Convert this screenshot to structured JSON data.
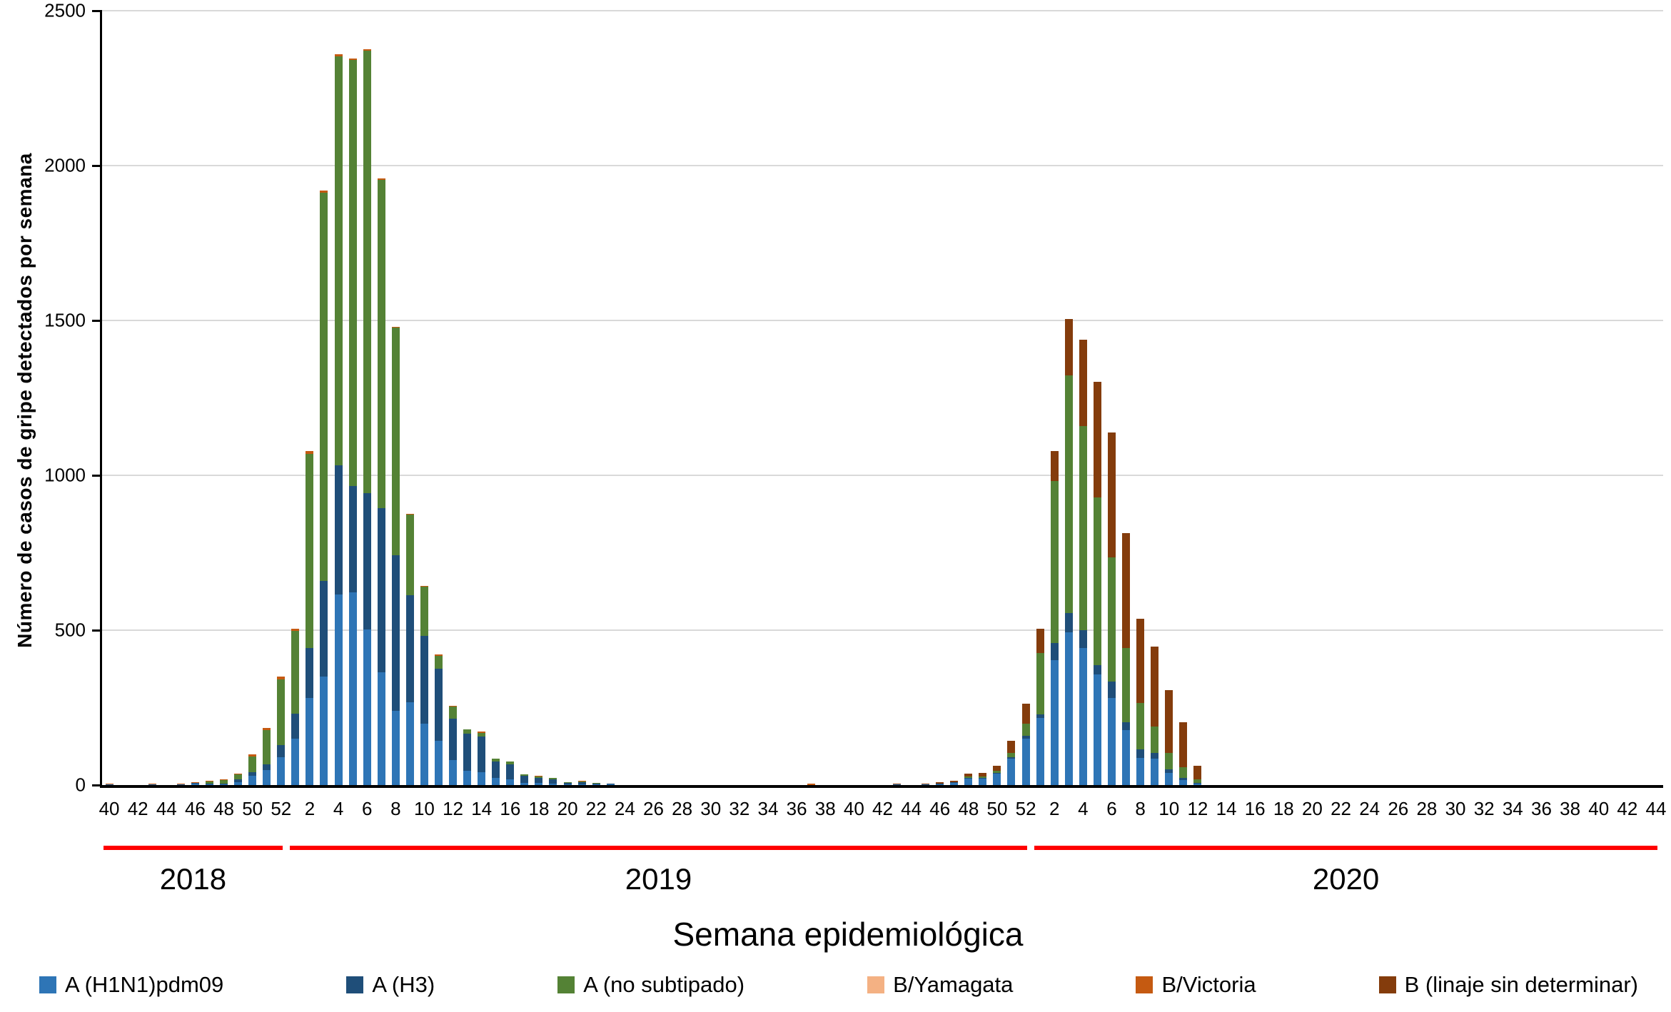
{
  "chart_data": {
    "type": "bar",
    "stacked": true,
    "title": "",
    "xlabel": "Semana epidemiológica",
    "ylabel": "Número de casos de gripe detectados por semana",
    "ylim": [
      0,
      2500
    ],
    "yticks": [
      0,
      500,
      1000,
      1500,
      2000,
      2500
    ],
    "grid": "horizontal",
    "gridline_color": "#d9d9d9",
    "legend_position": "bottom",
    "year_underline_color": "#ff0000",
    "x_tick_every": 2,
    "years": [
      {
        "label": "2018",
        "first_week": 40,
        "last_week": 52
      },
      {
        "label": "2019",
        "first_week": 1,
        "last_week": 52
      },
      {
        "label": "2020",
        "first_week": 1,
        "last_week": 44
      }
    ],
    "series": [
      {
        "name": "A (H1N1)pdm09",
        "color": "#2e75b6",
        "values": [
          1,
          0,
          0,
          1,
          0,
          1,
          4,
          2,
          3,
          10,
          30,
          48,
          90,
          150,
          282,
          351,
          616,
          623,
          503,
          363,
          240,
          268,
          198,
          143,
          80,
          45,
          42,
          22,
          18,
          8,
          6,
          5,
          2,
          3,
          1,
          1,
          0,
          0,
          0,
          0,
          0,
          0,
          0,
          0,
          0,
          0,
          0,
          0,
          0,
          0,
          0,
          0,
          0,
          0,
          0,
          1,
          0,
          1,
          3,
          6,
          20,
          20,
          38,
          85,
          150,
          217,
          404,
          494,
          443,
          358,
          282,
          178,
          88,
          85,
          39,
          16,
          5,
          0,
          0,
          0,
          0,
          0,
          0,
          0,
          0,
          0,
          0,
          0,
          0,
          0,
          0,
          0,
          0,
          0,
          0,
          0,
          0,
          0,
          0,
          0,
          0,
          0,
          0,
          0,
          0,
          0,
          0,
          0,
          0
        ]
      },
      {
        "name": "A (H3)",
        "color": "#1f4e79",
        "values": [
          0,
          0,
          0,
          0,
          0,
          0,
          1,
          1,
          2,
          8,
          12,
          18,
          40,
          80,
          161,
          307,
          416,
          342,
          439,
          531,
          501,
          344,
          284,
          233,
          135,
          120,
          115,
          55,
          48,
          22,
          16,
          14,
          5,
          6,
          3,
          1,
          0,
          0,
          0,
          0,
          0,
          0,
          0,
          0,
          0,
          0,
          0,
          0,
          0,
          0,
          0,
          0,
          0,
          0,
          0,
          0,
          0,
          0,
          1,
          1,
          1,
          2,
          2,
          4,
          8,
          12,
          55,
          62,
          58,
          30,
          53,
          25,
          27,
          19,
          12,
          7,
          3,
          0,
          0,
          0,
          0,
          0,
          0,
          0,
          0,
          0,
          0,
          0,
          0,
          0,
          0,
          0,
          0,
          0,
          0,
          0,
          0,
          0,
          0,
          0,
          0,
          0,
          0,
          0,
          0,
          0,
          0,
          0,
          0
        ]
      },
      {
        "name": "A (no subtipado)",
        "color": "#548235",
        "values": [
          0,
          0,
          0,
          0,
          0,
          0,
          0,
          8,
          10,
          16,
          50,
          112,
          212,
          267,
          627,
          1255,
          1320,
          1375,
          1428,
          1060,
          735,
          262,
          158,
          42,
          38,
          15,
          12,
          8,
          9,
          5,
          5,
          5,
          2,
          2,
          2,
          0,
          0,
          0,
          0,
          0,
          0,
          0,
          0,
          0,
          0,
          0,
          0,
          0,
          0,
          0,
          0,
          0,
          0,
          0,
          0,
          0,
          0,
          0,
          0,
          0,
          5,
          5,
          5,
          14,
          40,
          198,
          522,
          766,
          658,
          540,
          399,
          240,
          151,
          85,
          53,
          35,
          10,
          0,
          0,
          0,
          0,
          0,
          0,
          0,
          0,
          0,
          0,
          0,
          0,
          0,
          0,
          0,
          0,
          0,
          0,
          0,
          0,
          0,
          0,
          0,
          0,
          0,
          0,
          0,
          0,
          0,
          0,
          0,
          0
        ]
      },
      {
        "name": "B/Yamagata",
        "color": "#f4b183",
        "values": [
          0,
          0,
          0,
          0,
          0,
          0,
          0,
          0,
          0,
          0,
          0,
          0,
          0,
          0,
          0,
          0,
          0,
          0,
          0,
          0,
          0,
          0,
          0,
          0,
          0,
          0,
          0,
          0,
          0,
          0,
          0,
          0,
          0,
          0,
          0,
          0,
          0,
          0,
          0,
          0,
          0,
          0,
          0,
          0,
          0,
          0,
          0,
          0,
          0,
          0,
          0,
          0,
          0,
          0,
          0,
          0,
          0,
          0,
          0,
          0,
          0,
          0,
          0,
          0,
          0,
          0,
          0,
          0,
          0,
          0,
          0,
          0,
          0,
          0,
          0,
          0,
          0,
          0,
          0,
          0,
          0,
          0,
          0,
          0,
          0,
          0,
          0,
          0,
          0,
          0,
          0,
          0,
          0,
          0,
          0,
          0,
          0,
          0,
          0,
          0,
          0,
          0,
          0,
          0,
          0,
          0,
          0,
          0,
          0
        ]
      },
      {
        "name": "B/Victoria",
        "color": "#c55a11",
        "values": [
          3,
          0,
          0,
          3,
          0,
          3,
          3,
          2,
          3,
          4,
          8,
          7,
          8,
          8,
          8,
          7,
          8,
          5,
          5,
          5,
          4,
          1,
          4,
          3,
          3,
          0,
          3,
          0,
          0,
          0,
          1,
          0,
          0,
          1,
          0,
          0,
          0,
          0,
          0,
          0,
          0,
          0,
          0,
          0,
          0,
          0,
          0,
          0,
          0,
          4,
          0,
          0,
          0,
          0,
          0,
          0,
          0,
          0,
          0,
          0,
          0,
          0,
          0,
          0,
          0,
          0,
          0,
          0,
          0,
          0,
          0,
          0,
          0,
          0,
          0,
          0,
          0,
          0,
          0,
          0,
          0,
          0,
          0,
          0,
          0,
          0,
          0,
          0,
          0,
          0,
          0,
          0,
          0,
          0,
          0,
          0,
          0,
          0,
          0,
          0,
          0,
          0,
          0,
          0,
          0,
          0,
          0,
          0,
          0
        ]
      },
      {
        "name": "B (linaje sin determinar)",
        "color": "#843c0c",
        "values": [
          0,
          0,
          0,
          0,
          0,
          0,
          0,
          0,
          0,
          0,
          0,
          0,
          0,
          0,
          0,
          0,
          0,
          0,
          0,
          0,
          0,
          0,
          0,
          0,
          0,
          0,
          0,
          0,
          0,
          0,
          0,
          0,
          0,
          0,
          0,
          0,
          0,
          0,
          0,
          0,
          0,
          0,
          0,
          0,
          0,
          0,
          0,
          0,
          0,
          0,
          0,
          0,
          0,
          0,
          0,
          3,
          0,
          3,
          4,
          6,
          10,
          11,
          17,
          40,
          65,
          78,
          97,
          183,
          279,
          374,
          404,
          370,
          270,
          257,
          203,
          145,
          44,
          0,
          0,
          0,
          0,
          0,
          0,
          0,
          0,
          0,
          0,
          0,
          0,
          0,
          0,
          0,
          0,
          0,
          0,
          0,
          0,
          0,
          0,
          0,
          0,
          0,
          0,
          0,
          0,
          0,
          0,
          0,
          0
        ]
      }
    ]
  }
}
